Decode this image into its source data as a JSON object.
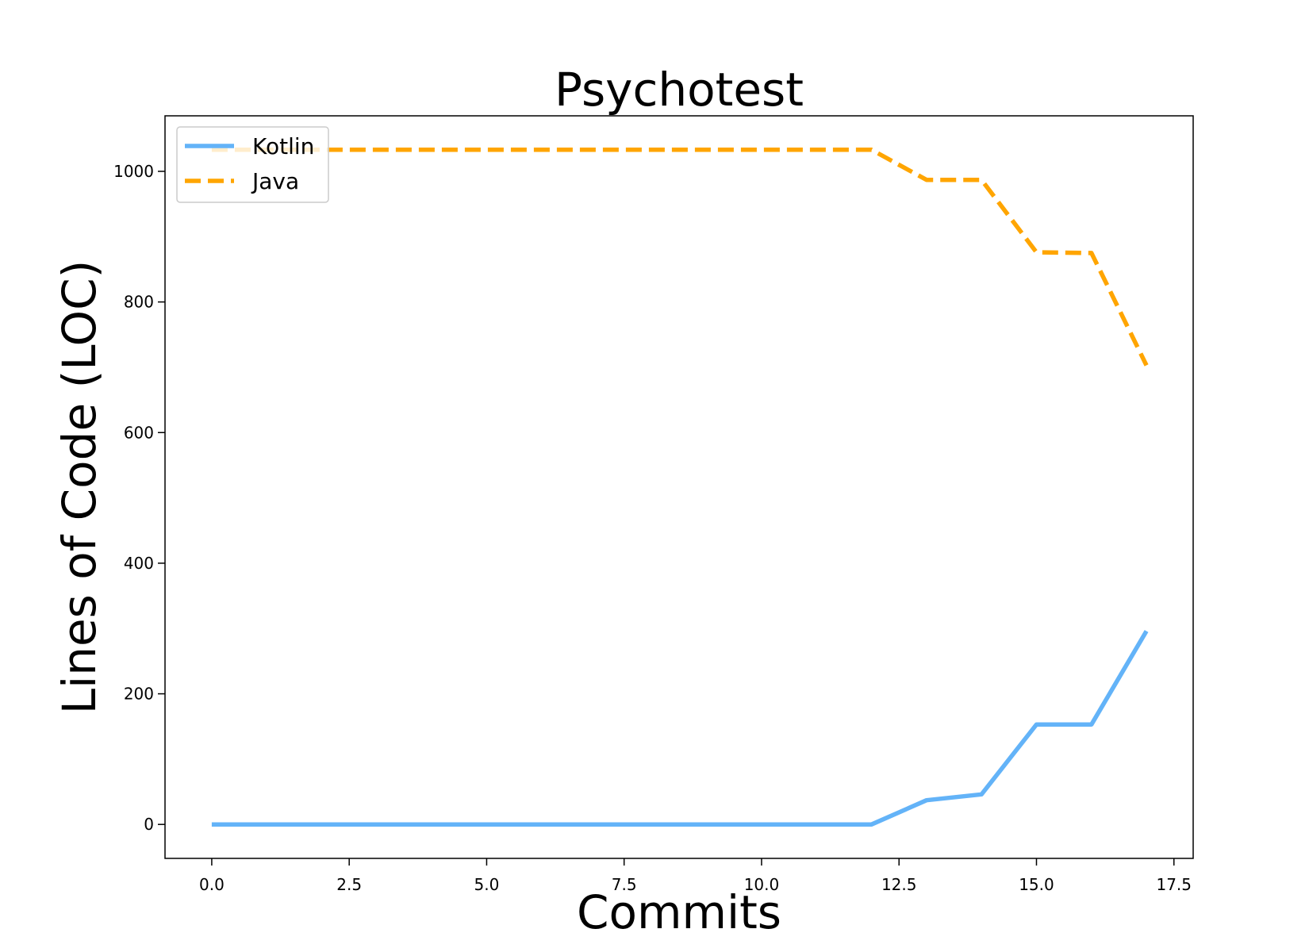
{
  "chart_data": {
    "type": "line",
    "title": "Psychotest",
    "xlabel": "Commits",
    "ylabel": "Lines of Code (LOC)",
    "xlim": [
      -0.85,
      17.85
    ],
    "ylim": [
      -52,
      1085
    ],
    "xticks": [
      0.0,
      2.5,
      5.0,
      7.5,
      10.0,
      12.5,
      15.0,
      17.5
    ],
    "xtick_labels": [
      "0.0",
      "2.5",
      "5.0",
      "7.5",
      "10.0",
      "12.5",
      "15.0",
      "17.5"
    ],
    "yticks": [
      0,
      200,
      400,
      600,
      800,
      1000
    ],
    "ytick_labels": [
      "0",
      "200",
      "400",
      "600",
      "800",
      "1000"
    ],
    "grid": false,
    "legend_position": "upper-left",
    "x": [
      0,
      1,
      2,
      3,
      4,
      5,
      6,
      7,
      8,
      9,
      10,
      11,
      12,
      13,
      14,
      15,
      16,
      17
    ],
    "series": [
      {
        "name": "Kotlin",
        "color": "#63b3f8",
        "style": "solid",
        "values": [
          0,
          0,
          0,
          0,
          0,
          0,
          0,
          0,
          0,
          0,
          0,
          0,
          0,
          37,
          46,
          153,
          153,
          296
        ]
      },
      {
        "name": "Java",
        "color": "#ffa500",
        "style": "dashed",
        "values": [
          1033,
          1033,
          1033,
          1033,
          1033,
          1033,
          1033,
          1033,
          1033,
          1033,
          1033,
          1033,
          1033,
          987,
          987,
          876,
          875,
          703
        ]
      }
    ]
  }
}
